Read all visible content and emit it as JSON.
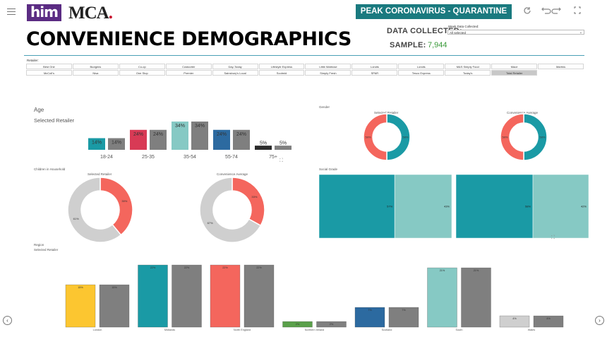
{
  "header": {
    "logo_him": "him",
    "logo_mca": "MCA",
    "logo_mca_dot": ".",
    "banner": "PEAK  CORONAVIRUS - QUARANTINE",
    "page_title": "CONVENIENCE DEMOGRAPHICS",
    "data_collected_label": "DATA COLLECTED:",
    "sample_label": "SAMPLE:",
    "sample_value": "7,944",
    "tools": [
      "refresh-icon",
      "undo-icon",
      "redo-icon",
      "fullscreen-icon",
      "close-icon"
    ]
  },
  "week_filter": {
    "title": "Week Data Collected:",
    "value": "All selected"
  },
  "retailer_filter": {
    "title": "Retailer:",
    "items": [
      "Best One",
      "Budgens",
      "Co-op",
      "Costcutter",
      "Day-Today",
      "Lifestyle Express",
      "Little Waitrose",
      "Londis",
      "Londis",
      "M&S Simply Food",
      "Mace",
      "Martins",
      "McColl's",
      "Nisa",
      "One Stop",
      "Premier",
      "Sainsbury's Local",
      "Scotmid",
      "Simply Fresh",
      "SPAR",
      "Tesco Express",
      "Today's",
      "Total Retailer"
    ],
    "selected": "Total Retailer"
  },
  "age": {
    "title": "Age",
    "subtitle": "Selected Retailer"
  },
  "gender": {
    "title": "Gender",
    "left_title": "Selected Retailer",
    "right_title": "Convenience Average"
  },
  "children": {
    "title": "Children in Household",
    "left_title": "Selected Retailer",
    "right_title": "Convenience Average"
  },
  "social": {
    "title": "Social Grade"
  },
  "region": {
    "title": "Region",
    "subtitle": "Selected Retailer"
  },
  "colors": {
    "teal": "#1a9aa5",
    "grey": "#7f7f7f",
    "red": "#f4665d",
    "crimson": "#d83a55",
    "light_teal": "#86c9c4",
    "navy": "#2c6aa0",
    "black": "#2b2b2b",
    "yellow": "#fcc630",
    "green": "#5aa04a",
    "light_grey": "#cfcfcf"
  },
  "chart_data": [
    {
      "type": "bar",
      "title": "Age",
      "categories": [
        "18-24",
        "25-35",
        "35-54",
        "55-74",
        "75+"
      ],
      "series": [
        {
          "values": [
            14,
            24,
            34,
            24,
            5
          ],
          "labels": [
            "14%",
            "24%",
            "34%",
            "24%",
            "5%"
          ]
        },
        {
          "values": [
            14,
            24,
            34,
            24,
            5
          ],
          "labels": [
            "14%",
            "24%",
            "34%",
            "24%",
            "5%"
          ]
        }
      ],
      "bar_colors": [
        "#1a9aa5",
        "#d83a55",
        "#86c9c4",
        "#2c6aa0",
        "#2b2b2b"
      ],
      "compare_color": "#7f7f7f"
    },
    {
      "type": "pie",
      "title": "Selected Retailer",
      "values": [
        50,
        50
      ],
      "labels": [
        "50%",
        "50%"
      ],
      "colors": [
        "#1a9aa5",
        "#f4665d"
      ]
    },
    {
      "type": "pie",
      "title": "Convenience Average",
      "values": [
        50,
        50
      ],
      "labels": [
        "50%",
        "50%"
      ],
      "colors": [
        "#1a9aa5",
        "#f4665d"
      ]
    },
    {
      "type": "pie",
      "title": "Selected Retailer",
      "values": [
        39,
        61
      ],
      "labels": [
        "39%",
        "61%"
      ],
      "colors": [
        "#f4665d",
        "#cfcfcf"
      ]
    },
    {
      "type": "pie",
      "title": "Convenience Average",
      "values": [
        33,
        67
      ],
      "labels": [
        "33%",
        "67%"
      ],
      "colors": [
        "#f4665d",
        "#cfcfcf"
      ]
    },
    {
      "type": "bar",
      "title": "Social Grade",
      "series": [
        {
          "values": [
            57,
            43
          ],
          "labels": [
            "57%",
            "43%"
          ]
        },
        {
          "values": [
            58,
            42
          ],
          "labels": [
            "58%",
            "42%"
          ]
        }
      ],
      "colors": [
        "#1a9aa5",
        "#86c9c4"
      ]
    },
    {
      "type": "bar",
      "title": "Region",
      "categories": [
        "London",
        "Midlands",
        "North England",
        "Northern Ireland",
        "Scotland",
        "South",
        "Wales"
      ],
      "series": [
        {
          "values": [
            15,
            22,
            22,
            2,
            7,
            21,
            4
          ],
          "labels": [
            "15%",
            "22%",
            "22%",
            "2%",
            "7%",
            "21%",
            "4%"
          ]
        },
        {
          "values": [
            15,
            22,
            22,
            2,
            7,
            21,
            4
          ],
          "labels": [
            "15%",
            "22%",
            "22%",
            "2%",
            "7%",
            "21%",
            "4%"
          ]
        }
      ],
      "bar_colors": [
        "#fcc630",
        "#1a9aa5",
        "#f4665d",
        "#5aa04a",
        "#2c6aa0",
        "#86c9c4",
        "#cfcfcf"
      ],
      "compare_color": "#7f7f7f"
    }
  ]
}
